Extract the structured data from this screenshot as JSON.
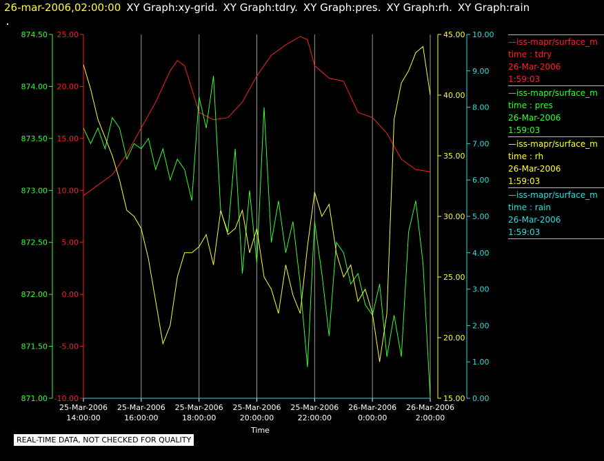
{
  "header": {
    "timestamp": "26-mar-2006,02:00:00",
    "graph_titles": [
      "XY Graph:xy-grid.",
      "XY Graph:tdry.",
      "XY Graph:pres.",
      "XY Graph:rh.",
      "XY Graph:rain"
    ]
  },
  "legend": [
    {
      "name": "—iss-mapr/surface_m",
      "field": "time : tdry",
      "date": "26-Mar-2006",
      "time": "1:59:03",
      "color": "#ff2222"
    },
    {
      "name": "—iss-mapr/surface_m",
      "field": "time : pres",
      "date": "26-Mar-2006",
      "time": "1:59:03",
      "color": "#33ff33"
    },
    {
      "name": "—iss-mapr/surface_m",
      "field": "time : rh",
      "date": "26-Mar-2006",
      "time": "1:59:03",
      "color": "#ffff33"
    },
    {
      "name": "—iss-mapr/surface_m",
      "field": "time : rain",
      "date": "26-Mar-2006",
      "time": "1:59:03",
      "color": "#33dddd"
    }
  ],
  "notice": "REAL-TIME DATA, NOT CHECKED FOR QUALITY",
  "chart_data": {
    "type": "line",
    "xlabel": "Time",
    "x_ticks": [
      [
        "25-Mar-2006",
        "14:00:00"
      ],
      [
        "25-Mar-2006",
        "16:00:00"
      ],
      [
        "25-Mar-2006",
        "18:00:00"
      ],
      [
        "25-Mar-2006",
        "20:00:00"
      ],
      [
        "25-Mar-2006",
        "22:00:00"
      ],
      [
        "26-Mar-2006",
        "0:00:00"
      ],
      [
        "26-Mar-2006",
        "2:00:00"
      ]
    ],
    "x_range_hours": [
      0,
      12
    ],
    "grid": "vertical lines at x ticks",
    "axes": [
      {
        "id": "tdry",
        "color": "#ff2222",
        "range": [
          -10,
          25
        ],
        "ticks": [
          "25.00",
          "20.00",
          "15.00",
          "10.00",
          "5.00",
          "0.00",
          "-5.00",
          "-10.00"
        ]
      },
      {
        "id": "pres",
        "color": "#33ff33",
        "range": [
          871,
          874.5
        ],
        "ticks": [
          "874.50",
          "874.00",
          "873.50",
          "873.00",
          "872.50",
          "872.00",
          "871.50",
          "871.00"
        ]
      },
      {
        "id": "rh",
        "color": "#ffff33",
        "range": [
          15,
          45
        ],
        "ticks": [
          "45.00",
          "40.00",
          "35.00",
          "30.00",
          "25.00",
          "20.00",
          "15.00"
        ]
      },
      {
        "id": "rain",
        "color": "#33dddd",
        "range": [
          0,
          10
        ],
        "ticks": [
          "10.00",
          "9.00",
          "8.00",
          "7.00",
          "6.00",
          "5.00",
          "4.00",
          "3.00",
          "2.00",
          "1.00",
          "0.00"
        ]
      }
    ],
    "series": [
      {
        "name": "tdry",
        "axis": "tdry",
        "color": "#ff2222",
        "x": [
          0,
          0.5,
          1,
          1.5,
          2,
          2.5,
          3,
          3.25,
          3.5,
          4,
          4.5,
          5,
          5.5,
          6,
          6.5,
          7,
          7.5,
          7.75,
          8,
          8.5,
          9,
          9.5,
          10,
          10.5,
          11,
          11.5,
          12
        ],
        "y": [
          9.5,
          10.5,
          11.5,
          13.5,
          16,
          18.5,
          21.5,
          22.5,
          22,
          17.5,
          16.8,
          17,
          18.5,
          21,
          23,
          24,
          24.8,
          24.5,
          22,
          20.8,
          20.5,
          17.5,
          17,
          15.5,
          13,
          12,
          11.8
        ]
      },
      {
        "name": "pres",
        "axis": "pres",
        "color": "#33ff33",
        "x": [
          0,
          0.25,
          0.5,
          0.75,
          1,
          1.25,
          1.5,
          1.75,
          2,
          2.25,
          2.5,
          2.75,
          3,
          3.25,
          3.5,
          3.75,
          4,
          4.25,
          4.5,
          4.75,
          5,
          5.25,
          5.5,
          5.75,
          6,
          6.25,
          6.5,
          6.75,
          7,
          7.25,
          7.5,
          7.75,
          8,
          8.25,
          8.5,
          8.75,
          9,
          9.25,
          9.5,
          9.75,
          10,
          10.25,
          10.5,
          10.75,
          11,
          11.25,
          11.5,
          11.75,
          12
        ],
        "y": [
          873.6,
          873.45,
          873.6,
          873.4,
          873.7,
          873.6,
          873.3,
          873.45,
          873.4,
          873.5,
          873.2,
          873.4,
          873.1,
          873.3,
          873.2,
          872.9,
          873.9,
          873.6,
          874.1,
          872.8,
          872.6,
          873.4,
          872.2,
          873.0,
          872.3,
          873.8,
          872.5,
          872.9,
          872.4,
          872.7,
          872.1,
          871.3,
          872.7,
          872.2,
          871.6,
          872.5,
          872.4,
          872.1,
          872.2,
          871.9,
          871.8,
          872.1,
          871.4,
          871.8,
          871.4,
          872.6,
          872.9,
          872.3,
          871.0
        ]
      },
      {
        "name": "rh",
        "axis": "rh",
        "color": "#ffff33",
        "x": [
          0,
          0.25,
          0.5,
          0.75,
          1,
          1.25,
          1.5,
          1.75,
          2,
          2.25,
          2.5,
          2.75,
          3,
          3.25,
          3.5,
          3.75,
          4,
          4.25,
          4.5,
          4.75,
          5,
          5.25,
          5.5,
          5.75,
          6,
          6.25,
          6.5,
          6.75,
          7,
          7.25,
          7.5,
          7.75,
          8,
          8.25,
          8.5,
          8.75,
          9,
          9.25,
          9.5,
          9.75,
          10,
          10.25,
          10.5,
          10.75,
          11,
          11.25,
          11.5,
          11.75,
          12
        ],
        "y": [
          42.5,
          40.5,
          38,
          36.5,
          35,
          33,
          30.5,
          30,
          29,
          26.5,
          23,
          19.5,
          21,
          25,
          27,
          27,
          27.5,
          28.5,
          26,
          30.5,
          28.5,
          29,
          30.5,
          27,
          29,
          25,
          24,
          22,
          26,
          23.5,
          22,
          27.5,
          32,
          30,
          31,
          27,
          25,
          26,
          23,
          24,
          22,
          18,
          22,
          38,
          41,
          42,
          43.5,
          44,
          40
        ]
      },
      {
        "name": "rain",
        "axis": "rain",
        "color": "#33dddd",
        "x": [
          0,
          12
        ],
        "y": [
          0,
          0
        ]
      }
    ]
  }
}
